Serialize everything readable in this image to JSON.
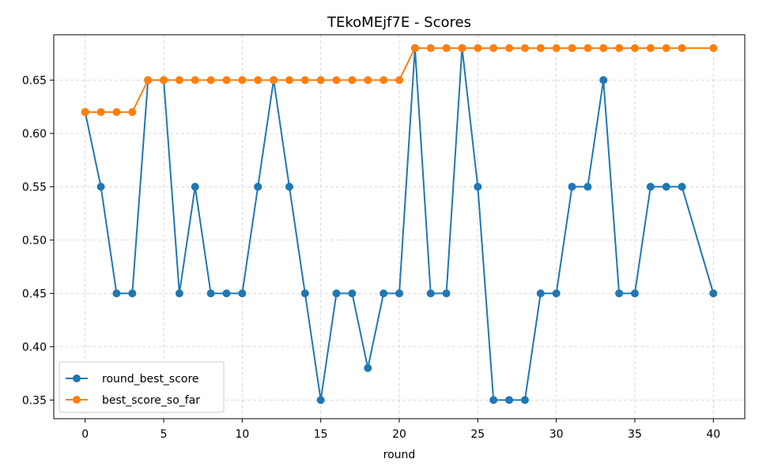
{
  "chart_data": {
    "type": "line",
    "title": "TEkoMEjf7E - Scores",
    "xlabel": "round",
    "ylabel": "",
    "xlim": [
      -2,
      42
    ],
    "ylim": [
      0.3325,
      0.6925
    ],
    "xticks": [
      0,
      5,
      10,
      15,
      20,
      25,
      30,
      35,
      40
    ],
    "yticks": [
      0.35,
      0.4,
      0.45,
      0.5,
      0.55,
      0.6,
      0.65
    ],
    "ytick_labels": [
      "0.35",
      "0.40",
      "0.45",
      "0.50",
      "0.55",
      "0.60",
      "0.65"
    ],
    "grid": true,
    "legend_position": "lower-left",
    "series": [
      {
        "name": "round_best_score",
        "color": "#1f77b4",
        "marker": "circle",
        "x": [
          0,
          1,
          2,
          3,
          4,
          5,
          6,
          7,
          8,
          9,
          10,
          11,
          12,
          13,
          14,
          15,
          16,
          17,
          18,
          19,
          20,
          21,
          22,
          23,
          24,
          25,
          26,
          27,
          28,
          29,
          30,
          31,
          32,
          33,
          34,
          35,
          36,
          37,
          38,
          40
        ],
        "values": [
          0.62,
          0.55,
          0.45,
          0.45,
          0.65,
          0.65,
          0.45,
          0.55,
          0.45,
          0.45,
          0.45,
          0.55,
          0.65,
          0.55,
          0.45,
          0.35,
          0.45,
          0.45,
          0.38,
          0.45,
          0.45,
          0.68,
          0.45,
          0.45,
          0.68,
          0.55,
          0.35,
          0.35,
          0.35,
          0.45,
          0.45,
          0.55,
          0.55,
          0.65,
          0.45,
          0.45,
          0.55,
          0.55,
          0.55,
          0.45
        ]
      },
      {
        "name": "best_score_so_far",
        "color": "#ff7f0e",
        "marker": "circle",
        "x": [
          0,
          1,
          2,
          3,
          4,
          5,
          6,
          7,
          8,
          9,
          10,
          11,
          12,
          13,
          14,
          15,
          16,
          17,
          18,
          19,
          20,
          21,
          22,
          23,
          24,
          25,
          26,
          27,
          28,
          29,
          30,
          31,
          32,
          33,
          34,
          35,
          36,
          37,
          38,
          40
        ],
        "values": [
          0.62,
          0.62,
          0.62,
          0.62,
          0.65,
          0.65,
          0.65,
          0.65,
          0.65,
          0.65,
          0.65,
          0.65,
          0.65,
          0.65,
          0.65,
          0.65,
          0.65,
          0.65,
          0.65,
          0.65,
          0.65,
          0.68,
          0.68,
          0.68,
          0.68,
          0.68,
          0.68,
          0.68,
          0.68,
          0.68,
          0.68,
          0.68,
          0.68,
          0.68,
          0.68,
          0.68,
          0.68,
          0.68,
          0.68,
          0.68
        ]
      }
    ]
  }
}
